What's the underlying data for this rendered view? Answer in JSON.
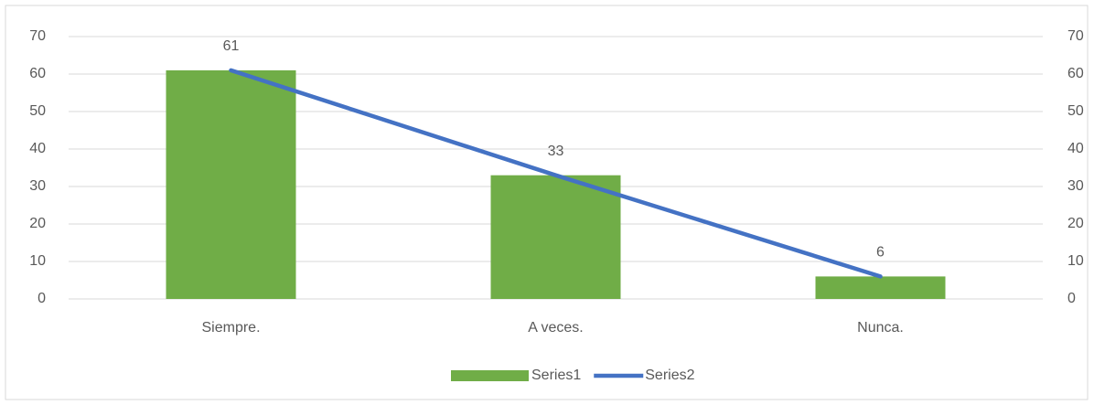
{
  "chart_data": {
    "type": "bar",
    "categories": [
      "Siempre.",
      "A veces.",
      "Nunca."
    ],
    "series": [
      {
        "name": "Series1",
        "type": "bar",
        "color": "#70ad47",
        "values": [
          61,
          33,
          6
        ]
      },
      {
        "name": "Series2",
        "type": "line",
        "axis": "y2",
        "color": "#4472c4",
        "values": [
          61,
          33,
          6
        ]
      }
    ],
    "ylim": [
      0,
      70
    ],
    "yticks": [
      0,
      10,
      20,
      30,
      40,
      50,
      60,
      70
    ],
    "y2lim": [
      0,
      70
    ],
    "y2ticks": [
      0,
      10,
      20,
      30,
      40,
      50,
      60,
      70
    ],
    "grid": true,
    "legend": "bottom",
    "data_labels": true
  }
}
